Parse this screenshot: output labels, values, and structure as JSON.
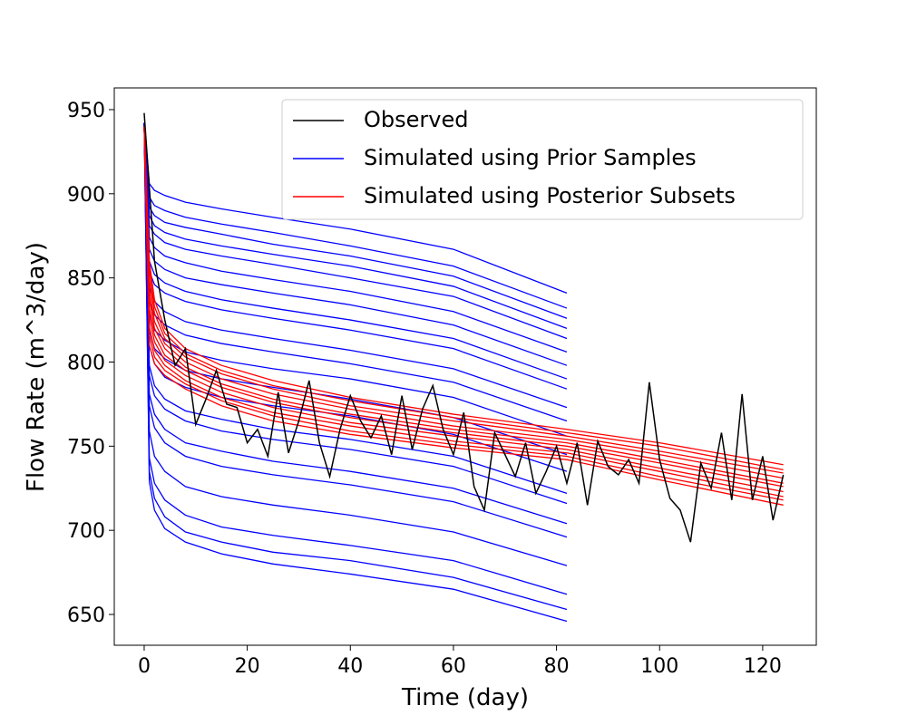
{
  "chart_data": {
    "type": "line",
    "xlabel": "Time (day)",
    "ylabel": "Flow Rate (m^3/day)",
    "xlim": [
      -5.8,
      130.4
    ],
    "ylim": [
      631.7,
      962.9
    ],
    "xticks": [
      0,
      20,
      40,
      60,
      80,
      100,
      120
    ],
    "yticks": [
      650,
      700,
      750,
      800,
      850,
      900,
      950
    ],
    "legend": "upper right",
    "series": [
      {
        "name": "Observed",
        "color": "#000000",
        "x": [
          0,
          2,
          4,
          6,
          8,
          10,
          12,
          14,
          16,
          18,
          20,
          22,
          24,
          26,
          28,
          30,
          32,
          34,
          36,
          38,
          40,
          42,
          44,
          46,
          48,
          50,
          52,
          54,
          56,
          58,
          60,
          62,
          64,
          66,
          68,
          70,
          72,
          74,
          76,
          78,
          80,
          82,
          84,
          86,
          88,
          90,
          92,
          94,
          96,
          98,
          100,
          102,
          104,
          106,
          108,
          110,
          112,
          114,
          116,
          118,
          120,
          122,
          124
        ],
        "values": [
          948,
          860,
          825,
          798,
          808,
          763,
          778,
          795,
          775,
          773,
          752,
          760,
          744,
          782,
          746,
          765,
          789,
          752,
          732,
          760,
          780,
          765,
          755,
          768,
          745,
          780,
          748,
          772,
          786,
          760,
          745,
          770,
          726,
          712,
          758,
          745,
          732,
          752,
          722,
          735,
          750,
          728,
          752,
          715,
          753,
          738,
          733,
          742,
          728,
          788,
          742,
          719,
          712,
          693,
          740,
          725,
          758,
          718,
          781,
          718,
          744,
          706,
          733
        ]
      },
      {
        "name": "Simulated using Prior Samples",
        "color": "#0000ff",
        "x": [
          0,
          1,
          2,
          4,
          8,
          15,
          25,
          40,
          60,
          82
        ],
        "lines": [
          [
            942,
            906,
            902,
            899,
            895,
            891,
            886,
            879,
            867,
            841
          ],
          [
            942,
            898,
            893,
            890,
            886,
            882,
            877,
            869,
            857,
            832
          ],
          [
            942,
            892,
            887,
            883,
            880,
            876,
            870,
            863,
            851,
            826
          ],
          [
            942,
            887,
            881,
            877,
            873,
            869,
            864,
            857,
            845,
            820
          ],
          [
            942,
            881,
            876,
            871,
            867,
            863,
            858,
            850,
            839,
            814
          ],
          [
            942,
            874,
            868,
            863,
            859,
            854,
            849,
            842,
            830,
            806
          ],
          [
            942,
            867,
            860,
            855,
            850,
            846,
            841,
            834,
            822,
            798
          ],
          [
            942,
            860,
            852,
            847,
            842,
            837,
            832,
            825,
            814,
            790
          ],
          [
            942,
            854,
            846,
            841,
            836,
            831,
            826,
            819,
            808,
            784
          ],
          [
            942,
            844,
            836,
            830,
            824,
            819,
            814,
            807,
            796,
            773
          ],
          [
            942,
            836,
            828,
            822,
            816,
            811,
            806,
            799,
            788,
            765
          ],
          [
            942,
            829,
            819,
            813,
            806,
            801,
            796,
            790,
            779,
            756
          ],
          [
            942,
            819,
            808,
            802,
            795,
            790,
            785,
            778,
            767,
            745
          ],
          [
            942,
            810,
            799,
            791,
            785,
            779,
            774,
            768,
            757,
            735
          ],
          [
            942,
            798,
            786,
            778,
            771,
            766,
            760,
            754,
            744,
            722
          ],
          [
            942,
            792,
            780,
            772,
            765,
            759,
            754,
            748,
            738,
            716
          ],
          [
            942,
            781,
            769,
            760,
            752,
            747,
            741,
            735,
            725,
            704
          ],
          [
            942,
            774,
            761,
            752,
            744,
            738,
            733,
            727,
            717,
            696
          ],
          [
            942,
            759,
            744,
            735,
            726,
            720,
            715,
            709,
            699,
            679
          ],
          [
            942,
            743,
            728,
            718,
            709,
            702,
            697,
            691,
            682,
            662
          ],
          [
            942,
            735,
            719,
            708,
            699,
            693,
            687,
            682,
            672,
            653
          ],
          [
            942,
            729,
            712,
            701,
            693,
            686,
            680,
            674,
            665,
            646
          ]
        ]
      },
      {
        "name": "Simulated using Posterior Subsets",
        "color": "#ff0000",
        "x": [
          0,
          1,
          2,
          4,
          8,
          15,
          25,
          40,
          60,
          82,
          100,
          124
        ],
        "lines": [
          [
            940,
            810,
            799,
            792,
            784,
            774,
            765,
            757,
            749,
            742,
            730,
            715
          ],
          [
            940,
            816,
            803,
            795,
            787,
            777,
            768,
            759,
            751,
            744,
            732,
            718
          ],
          [
            940,
            821,
            807,
            798,
            789,
            779,
            770,
            762,
            753,
            746,
            735,
            720
          ],
          [
            940,
            827,
            812,
            801,
            792,
            782,
            773,
            764,
            756,
            748,
            737,
            723
          ],
          [
            940,
            832,
            816,
            804,
            795,
            785,
            776,
            767,
            758,
            750,
            740,
            726
          ],
          [
            940,
            838,
            820,
            808,
            797,
            787,
            778,
            769,
            760,
            752,
            742,
            728
          ],
          [
            940,
            843,
            824,
            811,
            800,
            790,
            781,
            772,
            762,
            754,
            745,
            731
          ],
          [
            940,
            849,
            829,
            814,
            803,
            793,
            784,
            774,
            765,
            756,
            747,
            734
          ],
          [
            940,
            855,
            833,
            817,
            805,
            795,
            786,
            777,
            767,
            758,
            750,
            736
          ],
          [
            940,
            860,
            837,
            820,
            808,
            798,
            789,
            779,
            769,
            760,
            752,
            739
          ]
        ]
      }
    ]
  }
}
